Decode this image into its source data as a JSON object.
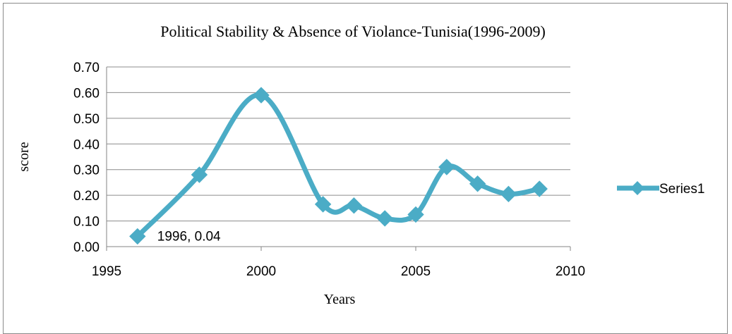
{
  "chart_data": {
    "type": "scatter",
    "title": "Political Stability & Absence of Violance-Tunisia(1996-2009)",
    "xlabel": "Years",
    "ylabel": "score",
    "xlim": [
      1995,
      2010
    ],
    "ylim": [
      0,
      0.7
    ],
    "x_ticks": [
      1995,
      2000,
      2005,
      2010
    ],
    "y_ticks": [
      "0.00",
      "0.10",
      "0.20",
      "0.30",
      "0.40",
      "0.50",
      "0.60",
      "0.70"
    ],
    "grid": true,
    "legend_position": "right",
    "series": [
      {
        "name": "Series1",
        "color": "#4bacc6",
        "smooth": true,
        "marker": "diamond",
        "x": [
          1996,
          1998,
          2000,
          2002,
          2003,
          2004,
          2005,
          2006,
          2007,
          2008,
          2009
        ],
        "y": [
          0.04,
          0.28,
          0.59,
          0.165,
          0.16,
          0.11,
          0.125,
          0.31,
          0.245,
          0.205,
          0.225
        ]
      }
    ],
    "annotations": [
      {
        "x": 1996,
        "y": 0.04,
        "text": "1996, 0.04"
      }
    ]
  }
}
